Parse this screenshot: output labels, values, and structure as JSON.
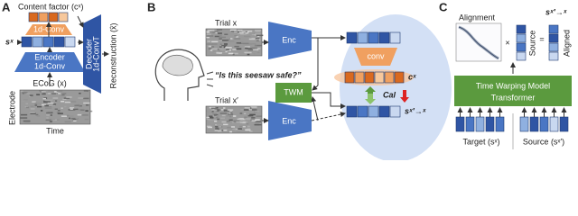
{
  "panel_a": {
    "label": "A",
    "content_factor": "Content factor (cˣ)",
    "conv": "1d-Conv",
    "s": "sˣ",
    "decoder": "Decoder",
    "decoder_sub": "1d-ConvT",
    "encoder": "Encoder",
    "encoder_sub": "1d-Conv",
    "reconstruction": "Reconstruction (x̂)",
    "ecog": "ECoG (x)",
    "electrode": "Electrode",
    "time": "Time"
  },
  "panel_b": {
    "label": "B",
    "trial_top": "Trial x",
    "enc_top": "Enc",
    "quote": "“Is this seesaw safe?”",
    "twm": "TWM",
    "trial_bottom": "Trial x′",
    "enc_bottom": "Enc",
    "conv": "conv",
    "c": "cˣ",
    "cal": "Cal",
    "s_aligned": "sˣ′→ˣ"
  },
  "panel_c": {
    "label": "C",
    "alignment": "Alignment",
    "times": "×",
    "source_col": "Source",
    "equals": "=",
    "s_aligned": "sˣ′→ˣ",
    "aligned_col": "Aligned",
    "model": "Time Warping Model",
    "model_sub": "Transformer",
    "target": "Target (sˣ)",
    "source": "Source (sˣ′)"
  }
}
